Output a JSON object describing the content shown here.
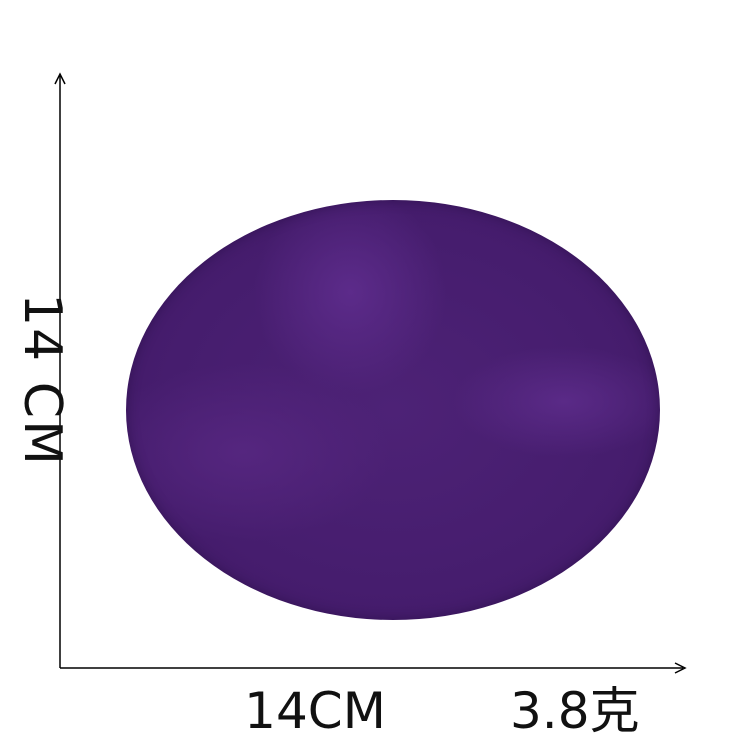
{
  "product": {
    "color": "#4a2072",
    "height_label": "14 CM",
    "width_label": "14CM",
    "weight_label": "3.8克"
  }
}
